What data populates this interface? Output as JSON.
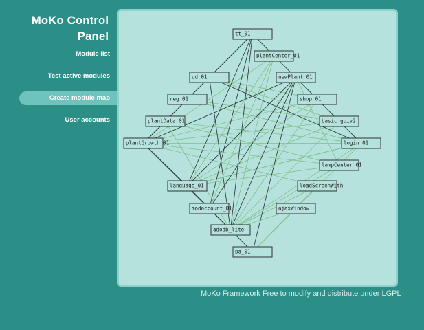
{
  "sidebar": {
    "title": "MoKo Control Panel",
    "nav": [
      "Module list",
      "Test active modules",
      "Create module map",
      "User accounts"
    ],
    "active": 2
  },
  "map": {
    "nodes": [
      "tt_01",
      "plantCenter_01",
      "ud_01",
      "newPlant_01",
      "reg_01",
      "shop_01",
      "plantData_01",
      "basic_guiv2",
      "plantGrowth_01",
      "login_01",
      "language_01",
      "lampCenter_01",
      "loadScreenWith",
      "modaccount_01",
      "ajaxWindow",
      "adodb_lite",
      "pa_01"
    ]
  },
  "footer": "MoKo Framework Free to modify and distribute under LGPL"
}
